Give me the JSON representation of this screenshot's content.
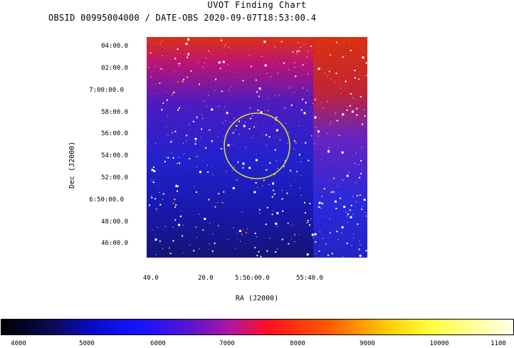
{
  "header": {
    "title": "UVOT Finding Chart",
    "subtitle": "OBSID 00995004000 / DATE-OBS 2020-09-07T18:53:00.4"
  },
  "axes": {
    "ylabel": "Dec (J2000)",
    "xlabel": "RA (J2000)",
    "dec_ticks": [
      "04:00.0",
      "02:00.0",
      "7:00:00.0",
      "58:00.0",
      "56:00.0",
      "54:00.0",
      "52:00.0",
      "6:50:00.0",
      "48:00.0",
      "46:00.0"
    ],
    "ra_ticks": [
      "40.0",
      "20.0",
      "5:56:00.0",
      "55:40.0"
    ]
  },
  "colorbar": {
    "ticks": [
      "4000",
      "5000",
      "6000",
      "7000",
      "8000",
      "9000",
      "10000",
      "1100"
    ]
  },
  "colors": {
    "circle": "#d8d838",
    "background_low": "#101068",
    "background_mid": "#3434f0",
    "background_high": "#ff4020"
  }
}
